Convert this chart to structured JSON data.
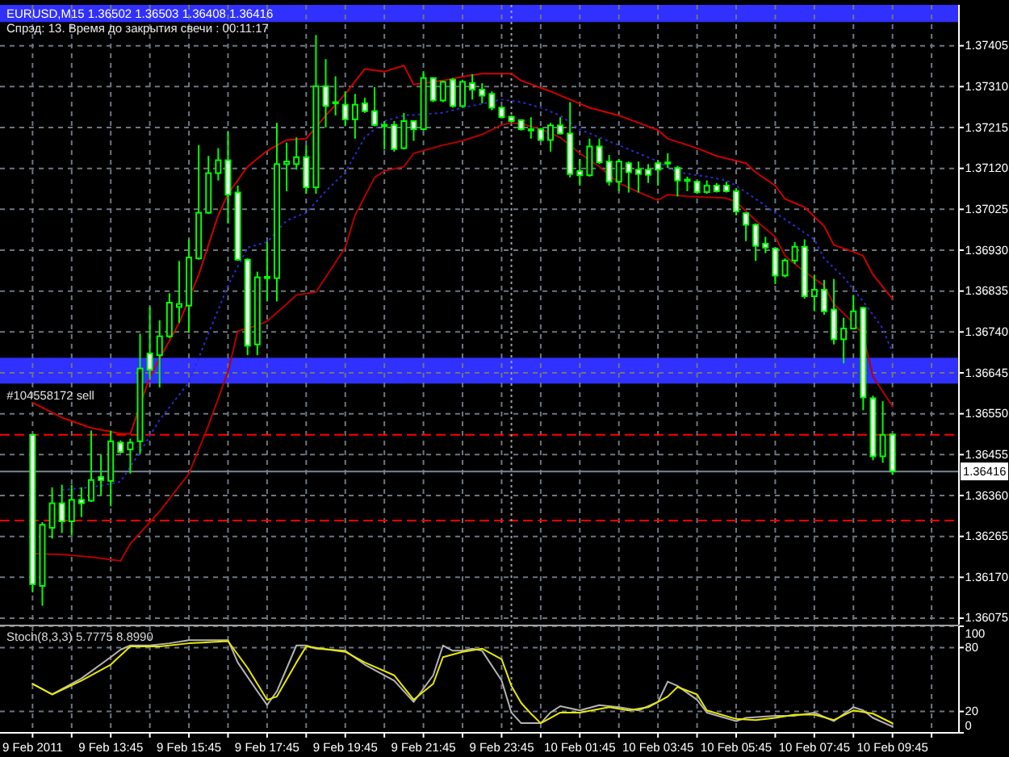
{
  "chart_data": [
    {
      "type": "candlestick",
      "title": "EURUSD,M15 1.36502 1.36503 1.36408 1.36416",
      "subtitle": "Спрэд: 13. Время до закрытия свечи : 00:11:17",
      "x": [
        "2011-02-09T11:45",
        "2011-02-09T12:00",
        "2011-02-09T12:15",
        "2011-02-09T12:30",
        "2011-02-09T12:45",
        "2011-02-09T13:00",
        "2011-02-09T13:15",
        "2011-02-09T13:30",
        "2011-02-09T13:45",
        "2011-02-09T14:00",
        "2011-02-09T14:15",
        "2011-02-09T14:30",
        "2011-02-09T14:45",
        "2011-02-09T15:00",
        "2011-02-09T15:15",
        "2011-02-09T15:30",
        "2011-02-09T15:45",
        "2011-02-09T16:00",
        "2011-02-09T16:15",
        "2011-02-09T16:30",
        "2011-02-09T16:45",
        "2011-02-09T17:00",
        "2011-02-09T17:15",
        "2011-02-09T17:30",
        "2011-02-09T17:45",
        "2011-02-09T18:00",
        "2011-02-09T18:15",
        "2011-02-09T18:30",
        "2011-02-09T18:45",
        "2011-02-09T19:00",
        "2011-02-09T19:15",
        "2011-02-09T19:30",
        "2011-02-09T19:45",
        "2011-02-09T20:00",
        "2011-02-09T20:15",
        "2011-02-09T20:30",
        "2011-02-09T20:45",
        "2011-02-09T21:00",
        "2011-02-09T21:15",
        "2011-02-09T21:30",
        "2011-02-09T21:45",
        "2011-02-09T22:00",
        "2011-02-09T22:15",
        "2011-02-09T22:30",
        "2011-02-09T22:45",
        "2011-02-09T23:00",
        "2011-02-09T23:15",
        "2011-02-09T23:30",
        "2011-02-09T23:45",
        "2011-02-10T00:00",
        "2011-02-10T00:15",
        "2011-02-10T00:30",
        "2011-02-10T00:45",
        "2011-02-10T01:00",
        "2011-02-10T01:15",
        "2011-02-10T01:30",
        "2011-02-10T01:45",
        "2011-02-10T02:00",
        "2011-02-10T02:15",
        "2011-02-10T02:30",
        "2011-02-10T02:45",
        "2011-02-10T03:00",
        "2011-02-10T03:15",
        "2011-02-10T03:30",
        "2011-02-10T03:45",
        "2011-02-10T04:00",
        "2011-02-10T04:15",
        "2011-02-10T04:30",
        "2011-02-10T04:45",
        "2011-02-10T05:00",
        "2011-02-10T05:15",
        "2011-02-10T05:30",
        "2011-02-10T05:45",
        "2011-02-10T06:00",
        "2011-02-10T06:15",
        "2011-02-10T06:30",
        "2011-02-10T06:45",
        "2011-02-10T07:00",
        "2011-02-10T07:15",
        "2011-02-10T07:30",
        "2011-02-10T07:45",
        "2011-02-10T08:00",
        "2011-02-10T08:15",
        "2011-02-10T08:30",
        "2011-02-10T08:45",
        "2011-02-10T09:00",
        "2011-02-10T09:15",
        "2011-02-10T09:30",
        "2011-02-10T09:45"
      ],
      "ohlc": [
        [
          1.36501,
          1.36504,
          1.36135,
          1.36154
        ],
        [
          1.3615,
          1.36298,
          1.36104,
          1.36292
        ],
        [
          1.36285,
          1.36379,
          1.3626,
          1.36342
        ],
        [
          1.36342,
          1.36385,
          1.36273,
          1.363
        ],
        [
          1.363,
          1.36385,
          1.36267,
          1.3635
        ],
        [
          1.3635,
          1.36379,
          1.3631,
          1.36342
        ],
        [
          1.36348,
          1.36511,
          1.36345,
          1.36396
        ],
        [
          1.36403,
          1.36454,
          1.3636,
          1.36396
        ],
        [
          1.36394,
          1.36511,
          1.36335,
          1.36486
        ],
        [
          1.36483,
          1.36488,
          1.36458,
          1.36461
        ],
        [
          1.36467,
          1.36492,
          1.36411,
          1.36483
        ],
        [
          1.36486,
          1.36736,
          1.36457,
          1.36655
        ],
        [
          1.3669,
          1.36798,
          1.36629,
          1.36652
        ],
        [
          1.36686,
          1.36767,
          1.36611,
          1.3673
        ],
        [
          1.3673,
          1.3683,
          1.36726,
          1.36808
        ],
        [
          1.36798,
          1.36905,
          1.36761,
          1.36805
        ],
        [
          1.36801,
          1.36955,
          1.36738,
          1.36913
        ],
        [
          1.36911,
          1.37174,
          1.36908,
          1.37017
        ],
        [
          1.37017,
          1.37149,
          1.37014,
          1.37109
        ],
        [
          1.37109,
          1.37167,
          1.37092,
          1.37139
        ],
        [
          1.37139,
          1.37205,
          1.36992,
          1.37059
        ],
        [
          1.37064,
          1.3708,
          1.36905,
          1.36908
        ],
        [
          1.36908,
          1.36911,
          1.36686,
          1.36708
        ],
        [
          1.36711,
          1.3688,
          1.36686,
          1.36867
        ],
        [
          1.36866,
          1.36949,
          1.36811,
          1.36868
        ],
        [
          1.36865,
          1.37226,
          1.36811,
          1.3713
        ],
        [
          1.3713,
          1.3718,
          1.37067,
          1.37136
        ],
        [
          1.3713,
          1.37192,
          1.37117,
          1.37146
        ],
        [
          1.37146,
          1.37174,
          1.37061,
          1.37076
        ],
        [
          1.37076,
          1.3743,
          1.37061,
          1.37311
        ],
        [
          1.37311,
          1.37374,
          1.37215,
          1.37265
        ],
        [
          1.37271,
          1.37334,
          1.37243,
          1.37274
        ],
        [
          1.37268,
          1.37299,
          1.37218,
          1.37234
        ],
        [
          1.37234,
          1.37293,
          1.37189,
          1.37268
        ],
        [
          1.37271,
          1.37284,
          1.37249,
          1.37253
        ],
        [
          1.37253,
          1.37309,
          1.37218,
          1.37221
        ],
        [
          1.37221,
          1.3723,
          1.37164,
          1.3722
        ],
        [
          1.37221,
          1.3723,
          1.37159,
          1.37165
        ],
        [
          1.37167,
          1.37249,
          1.37164,
          1.3723
        ],
        [
          1.3723,
          1.3723,
          1.37184,
          1.37211
        ],
        [
          1.37211,
          1.37346,
          1.37208,
          1.3733
        ],
        [
          1.3733,
          1.3733,
          1.37274,
          1.37278
        ],
        [
          1.37278,
          1.37324,
          1.37274,
          1.37321
        ],
        [
          1.37326,
          1.3733,
          1.37261,
          1.37265
        ],
        [
          1.37265,
          1.37326,
          1.37261,
          1.37321
        ],
        [
          1.37318,
          1.37339,
          1.3728,
          1.37303
        ],
        [
          1.37303,
          1.37318,
          1.37271,
          1.37289
        ],
        [
          1.37293,
          1.37299,
          1.37255,
          1.37261
        ],
        [
          1.37261,
          1.37264,
          1.37236,
          1.37239
        ],
        [
          1.3724,
          1.37243,
          1.37226,
          1.3723
        ],
        [
          1.37232,
          1.37234,
          1.37208,
          1.37211
        ],
        [
          1.37211,
          1.37239,
          1.37189,
          1.3721
        ],
        [
          1.37211,
          1.37214,
          1.37184,
          1.37186
        ],
        [
          1.37186,
          1.37226,
          1.37159,
          1.3722
        ],
        [
          1.3722,
          1.37239,
          1.37199,
          1.37201
        ],
        [
          1.37201,
          1.37274,
          1.37099,
          1.37107
        ],
        [
          1.37114,
          1.37142,
          1.3708,
          1.37104
        ],
        [
          1.37104,
          1.37189,
          1.37101,
          1.37171
        ],
        [
          1.37171,
          1.37189,
          1.3713,
          1.37134
        ],
        [
          1.37136,
          1.37151,
          1.3708,
          1.37089
        ],
        [
          1.37089,
          1.37142,
          1.37067,
          1.37136
        ],
        [
          1.37132,
          1.37136,
          1.37064,
          1.37111
        ],
        [
          1.37117,
          1.37136,
          1.37064,
          1.37107
        ],
        [
          1.37117,
          1.3713,
          1.37086,
          1.37105
        ],
        [
          1.37132,
          1.37139,
          1.3708,
          1.37117
        ],
        [
          1.37134,
          1.37155,
          1.37121,
          1.37131
        ],
        [
          1.37121,
          1.37126,
          1.37055,
          1.37092
        ],
        [
          1.37094,
          1.37101,
          1.37067,
          1.37091
        ],
        [
          1.37089,
          1.37092,
          1.37061,
          1.37065
        ],
        [
          1.37065,
          1.37092,
          1.37061,
          1.3708
        ],
        [
          1.3708,
          1.37086,
          1.37064,
          1.37067
        ],
        [
          1.3708,
          1.37089,
          1.37064,
          1.37067
        ],
        [
          1.37067,
          1.37074,
          1.37011,
          1.3702
        ],
        [
          1.37016,
          1.37017,
          1.36951,
          1.36989
        ],
        [
          1.36989,
          1.36992,
          1.36905,
          1.3694
        ],
        [
          1.36945,
          1.36961,
          1.36923,
          1.36936
        ],
        [
          1.36934,
          1.36936,
          1.36851,
          1.36871
        ],
        [
          1.36871,
          1.36911,
          1.36867,
          1.36906
        ],
        [
          1.36906,
          1.36949,
          1.36898,
          1.36938
        ],
        [
          1.36938,
          1.36955,
          1.36817,
          1.36823
        ],
        [
          1.36823,
          1.36873,
          1.36788,
          1.36838
        ],
        [
          1.36838,
          1.36861,
          1.3678,
          1.36788
        ],
        [
          1.36792,
          1.36863,
          1.36711,
          1.36723
        ],
        [
          1.36723,
          1.36773,
          1.36667,
          1.36748
        ],
        [
          1.36748,
          1.36826,
          1.36746,
          1.36788
        ],
        [
          1.36796,
          1.36798,
          1.36558,
          1.36588
        ],
        [
          1.36586,
          1.36592,
          1.36442,
          1.36451
        ],
        [
          1.36451,
          1.36579,
          1.36436,
          1.36501
        ],
        [
          1.36502,
          1.36503,
          1.36408,
          1.36416
        ]
      ],
      "color": "#00ff00",
      "colors": [
        "#ffffff",
        "#000000",
        "#000000",
        "#ffffff",
        "#000000",
        "#ffffff",
        "#000000",
        "#ffffff",
        "#000000",
        "#ffffff",
        "#000000",
        "#000000",
        "#ffffff",
        "#000000",
        "#000000",
        "#000000",
        "#000000",
        "#000000",
        "#000000",
        "#000000",
        "#ffffff",
        "#ffffff",
        "#ffffff",
        "#000000",
        "#000000",
        "#000000",
        "#000000",
        "#000000",
        "#ffffff",
        "#000000",
        "#ffffff",
        "#000000",
        "#ffffff",
        "#000000",
        "#ffffff",
        "#ffffff",
        "#ffffff",
        "#ffffff",
        "#000000",
        "#ffffff",
        "#000000",
        "#ffffff",
        "#000000",
        "#ffffff",
        "#000000",
        "#ffffff",
        "#ffffff",
        "#ffffff",
        "#ffffff",
        "#ffffff",
        "#ffffff",
        "#ffffff",
        "#ffffff",
        "#000000",
        "#ffffff",
        "#ffffff",
        "#ffffff",
        "#000000",
        "#ffffff",
        "#ffffff",
        "#000000",
        "#ffffff",
        "#ffffff",
        "#ffffff",
        "#ffffff",
        "#ffffff",
        "#ffffff",
        "#ffffff",
        "#ffffff",
        "#000000",
        "#ffffff",
        "#ffffff",
        "#ffffff",
        "#ffffff",
        "#ffffff",
        "#ffffff",
        "#ffffff",
        "#000000",
        "#000000",
        "#ffffff",
        "#000000",
        "#ffffff",
        "#ffffff",
        "#000000",
        "#000000",
        "#ffffff",
        "#ffffff",
        "#000000",
        "#ffffff"
      ],
      "series": [
        {
          "type": "line",
          "color": "#d00000",
          "x": [
            "2011-02-09T11:45",
            "2011-02-09T12:30",
            "2011-02-09T13:15",
            "2011-02-09T14:00",
            "2011-02-09T14:15",
            "2011-02-09T14:45",
            "2011-02-09T15:30",
            "2011-02-09T16:00",
            "2011-02-09T16:30",
            "2011-02-09T16:45",
            "2011-02-09T17:15",
            "2011-02-09T17:45",
            "2011-02-09T18:15",
            "2011-02-09T18:45",
            "2011-02-09T19:15",
            "2011-02-09T19:45",
            "2011-02-09T20:15",
            "2011-02-09T20:45",
            "2011-02-09T21:15",
            "2011-02-09T21:30",
            "2011-02-09T22:15",
            "2011-02-09T22:45",
            "2011-02-09T23:15",
            "2011-02-10T00:00",
            "2011-02-10T00:15",
            "2011-02-10T01:00",
            "2011-02-10T01:30",
            "2011-02-10T02:00",
            "2011-02-10T02:45",
            "2011-02-10T03:15",
            "2011-02-10T03:45",
            "2011-02-10T04:00",
            "2011-02-10T04:45",
            "2011-02-10T05:15",
            "2011-02-10T06:00",
            "2011-02-10T06:15",
            "2011-02-10T06:45",
            "2011-02-10T07:00",
            "2011-02-10T07:30",
            "2011-02-10T08:00",
            "2011-02-10T08:15",
            "2011-02-10T08:45",
            "2011-02-10T09:00",
            "2011-02-10T09:15",
            "2011-02-10T09:45"
          ],
          "values": [
            1.36576,
            1.36541,
            1.36517,
            1.36504,
            1.36503,
            1.36636,
            1.36761,
            1.36873,
            1.37011,
            1.37061,
            1.37124,
            1.37161,
            1.37186,
            1.37189,
            1.37243,
            1.37293,
            1.37351,
            1.37345,
            1.37359,
            1.37315,
            1.37324,
            1.37333,
            1.3734,
            1.3734,
            1.37324,
            1.37299,
            1.3728,
            1.37261,
            1.37243,
            1.37226,
            1.37209,
            1.37189,
            1.37167,
            1.37149,
            1.37132,
            1.37111,
            1.3708,
            1.37049,
            1.3703,
            1.36986,
            1.36942,
            1.36926,
            1.36917,
            1.36873,
            1.36817
          ]
        },
        {
          "type": "line",
          "color": "#b40000",
          "x": [
            "2011-02-09T11:45",
            "2011-02-09T12:30",
            "2011-02-09T13:15",
            "2011-02-09T14:00",
            "2011-02-09T14:15",
            "2011-02-09T15:00",
            "2011-02-09T15:45",
            "2011-02-09T16:15",
            "2011-02-09T16:45",
            "2011-02-09T17:00",
            "2011-02-09T17:30",
            "2011-02-09T17:45",
            "2011-02-09T18:15",
            "2011-02-09T18:30",
            "2011-02-09T19:00",
            "2011-02-09T19:45",
            "2011-02-09T20:00",
            "2011-02-09T20:30",
            "2011-02-09T20:45",
            "2011-02-09T21:15",
            "2011-02-09T21:30",
            "2011-02-09T22:15",
            "2011-02-09T22:45",
            "2011-02-09T23:15",
            "2011-02-09T23:45",
            "2011-02-10T00:00",
            "2011-02-10T00:15",
            "2011-02-10T00:45",
            "2011-02-10T01:15",
            "2011-02-10T01:45",
            "2011-02-10T02:15",
            "2011-02-10T02:45",
            "2011-02-10T03:15",
            "2011-02-10T03:45",
            "2011-02-10T04:00",
            "2011-02-10T04:30",
            "2011-02-10T05:30",
            "2011-02-10T05:45",
            "2011-02-10T06:00",
            "2011-02-10T06:15",
            "2011-02-10T06:45",
            "2011-02-10T07:00",
            "2011-02-10T07:30",
            "2011-02-10T08:00",
            "2011-02-10T08:15",
            "2011-02-10T08:45",
            "2011-02-10T09:00",
            "2011-02-10T09:15",
            "2011-02-10T09:45"
          ],
          "values": [
            1.36225,
            1.36223,
            1.36217,
            1.36208,
            1.36248,
            1.36323,
            1.36411,
            1.36523,
            1.36648,
            1.36742,
            1.36755,
            1.36765,
            1.36805,
            1.36826,
            1.36833,
            1.36936,
            1.37011,
            1.37099,
            1.37114,
            1.37124,
            1.37155,
            1.37174,
            1.37184,
            1.37199,
            1.37221,
            1.37226,
            1.37224,
            1.37211,
            1.37192,
            1.37155,
            1.37124,
            1.37086,
            1.37065,
            1.37046,
            1.37059,
            1.37055,
            1.37051,
            1.37042,
            1.37021,
            1.36999,
            1.36961,
            1.36917,
            1.3688,
            1.36848,
            1.36805,
            1.36761,
            1.36733,
            1.36636,
            1.36567
          ]
        },
        {
          "type": "line",
          "color": "#2a2ad0",
          "line_style": "dotted",
          "x": [
            "2011-02-09T12:30",
            "2011-02-09T13:15",
            "2011-02-09T14:00",
            "2011-02-09T14:30",
            "2011-02-09T15:00",
            "2011-02-09T15:45",
            "2011-02-09T16:15",
            "2011-02-09T16:45",
            "2011-02-09T17:15",
            "2011-02-09T17:45",
            "2011-02-09T18:15",
            "2011-02-09T18:45",
            "2011-02-09T19:15",
            "2011-02-09T19:45",
            "2011-02-09T20:15",
            "2011-02-09T20:45",
            "2011-02-09T21:15",
            "2011-02-09T21:45",
            "2011-02-09T22:15",
            "2011-02-09T22:45",
            "2011-02-09T23:15",
            "2011-02-09T23:45",
            "2011-02-10T00:15",
            "2011-02-10T00:45",
            "2011-02-10T01:15",
            "2011-02-10T01:45",
            "2011-02-10T02:15",
            "2011-02-10T02:45",
            "2011-02-10T03:45",
            "2011-02-10T04:15",
            "2011-02-10T05:00",
            "2011-02-10T05:30",
            "2011-02-10T05:45",
            "2011-02-10T06:15",
            "2011-02-10T06:45",
            "2011-02-10T07:15",
            "2011-02-10T07:45",
            "2011-02-10T08:00",
            "2011-02-10T08:30",
            "2011-02-10T09:00",
            "2011-02-10T09:30",
            "2011-02-10T09:45"
          ],
          "values": [
            1.36373,
            1.36379,
            1.36392,
            1.36461,
            1.36536,
            1.36623,
            1.36736,
            1.36848,
            1.36936,
            1.36949,
            1.36999,
            1.37017,
            1.37067,
            1.37111,
            1.37192,
            1.3723,
            1.37243,
            1.37246,
            1.37249,
            1.37261,
            1.3727,
            1.3728,
            1.37274,
            1.37261,
            1.37243,
            1.37211,
            1.37192,
            1.37174,
            1.37136,
            1.37111,
            1.37101,
            1.37092,
            1.3708,
            1.37049,
            1.37017,
            1.36986,
            1.36955,
            1.36911,
            1.36867,
            1.36811,
            1.36748,
            1.36692
          ]
        }
      ],
      "xlim": [
        "2011-02-09T10:55",
        "2011-02-10T11:27"
      ],
      "xticks": [
        "2011-02-09T11:45",
        "2011-02-09T12:45",
        "2011-02-09T13:45",
        "2011-02-09T14:45",
        "2011-02-09T15:45",
        "2011-02-09T16:45",
        "2011-02-09T17:45",
        "2011-02-09T18:45",
        "2011-02-09T19:45",
        "2011-02-09T20:45",
        "2011-02-09T21:45",
        "2011-02-09T22:45",
        "2011-02-09T23:45",
        "2011-02-10T00:45",
        "2011-02-10T01:45",
        "2011-02-10T02:45",
        "2011-02-10T03:45",
        "2011-02-10T04:45",
        "2011-02-10T05:45",
        "2011-02-10T06:45",
        "2011-02-10T07:45",
        "2011-02-10T08:45",
        "2011-02-10T09:45",
        "2011-02-10T10:45"
      ],
      "ylim": [
        1.3606,
        1.375
      ],
      "yticks": [
        1.36075,
        {
          "value": 1.3617,
          "label": "1.36170"
        },
        1.36265,
        {
          "value": 1.3636,
          "label": "1.36360"
        },
        1.36455,
        {
          "value": 1.3655,
          "label": "1.36550"
        },
        1.36645,
        {
          "value": 1.3674,
          "label": "1.36740"
        },
        1.36835,
        {
          "value": 1.3693,
          "label": "1.36930"
        },
        1.37025,
        {
          "value": 1.3712,
          "label": "1.37120"
        },
        1.37215,
        {
          "value": 1.3731,
          "label": "1.37310"
        },
        1.37405
      ],
      "grid": true,
      "tick_labels": "y",
      "bands": [
        {
          "axis": "y",
          "from": 1.3662,
          "to": 1.3668,
          "color": "#3030ff"
        },
        {
          "axis": "y",
          "from": 1.3746,
          "to": 1.375,
          "color": "#3030ff"
        }
      ],
      "ref_lines": [
        {
          "axis": "y",
          "value": 1.36501,
          "color": "#ff0000",
          "line_style": "dashed"
        },
        {
          "axis": "y",
          "value": 1.36302,
          "color": "#ff0000",
          "line_style": "dashed"
        },
        {
          "axis": "y",
          "value": 1.36416,
          "label": "1.36416",
          "color": "#778899"
        },
        {
          "axis": "x",
          "value": "2011-02-10T00:00",
          "color": "#a0a0a0",
          "line_style": "dotted"
        }
      ],
      "annotations": [
        {
          "text": "#104558172 sell",
          "x": "2011-02-09T11:45",
          "y": 1.36501
        }
      ]
    },
    {
      "type": "line",
      "title": "Stoch(8,3,3) 5.7775 8.8990",
      "series": [
        {
          "color": "#b4b4b4",
          "x": [
            "2011-02-09T11:45",
            "2011-02-09T12:15",
            "2011-02-09T13:00",
            "2011-02-09T13:45",
            "2011-02-09T14:00",
            "2011-02-09T14:15",
            "2011-02-09T14:45",
            "2011-02-09T15:15",
            "2011-02-09T15:45",
            "2011-02-09T16:45",
            "2011-02-09T17:00",
            "2011-02-09T17:30",
            "2011-02-09T17:45",
            "2011-02-09T18:00",
            "2011-02-09T18:30",
            "2011-02-09T18:45",
            "2011-02-09T19:00",
            "2011-02-09T19:45",
            "2011-02-09T20:15",
            "2011-02-09T21:00",
            "2011-02-09T21:30",
            "2011-02-09T22:00",
            "2011-02-09T22:15",
            "2011-02-09T22:30",
            "2011-02-09T22:45",
            "2011-02-09T23:00",
            "2011-02-09T23:15",
            "2011-02-09T23:45",
            "2011-02-10T00:00",
            "2011-02-10T00:15",
            "2011-02-10T00:45",
            "2011-02-10T01:00",
            "2011-02-10T01:15",
            "2011-02-10T01:45",
            "2011-02-10T02:15",
            "2011-02-10T02:45",
            "2011-02-10T03:15",
            "2011-02-10T03:45",
            "2011-02-10T04:00",
            "2011-02-10T04:15",
            "2011-02-10T04:45",
            "2011-02-10T05:00",
            "2011-02-10T05:45",
            "2011-02-10T06:00",
            "2011-02-10T06:45",
            "2011-02-10T07:15",
            "2011-02-10T07:45",
            "2011-02-10T08:15",
            "2011-02-10T08:45",
            "2011-02-10T09:00",
            "2011-02-10T09:15",
            "2011-02-10T09:45"
          ],
          "values": [
            46,
            36,
            51,
            71,
            78,
            82,
            82,
            84,
            87,
            87,
            66,
            39,
            26,
            39,
            82,
            82,
            79,
            77,
            64,
            49,
            29,
            54,
            82,
            77,
            77,
            79,
            77,
            49,
            19,
            9,
            9,
            19,
            25,
            21,
            26,
            24,
            21,
            29,
            48,
            44,
            31,
            19,
            11,
            14,
            16,
            16,
            19,
            11,
            24,
            21,
            14,
            5.7775
          ]
        },
        {
          "color": "#e8e800",
          "x": [
            "2011-02-09T11:45",
            "2011-02-09T12:15",
            "2011-02-09T13:00",
            "2011-02-09T13:45",
            "2011-02-09T14:15",
            "2011-02-09T15:00",
            "2011-02-09T15:45",
            "2011-02-09T16:45",
            "2011-02-09T17:15",
            "2011-02-09T17:45",
            "2011-02-09T18:00",
            "2011-02-09T18:30",
            "2011-02-09T18:45",
            "2011-02-09T19:45",
            "2011-02-09T20:15",
            "2011-02-09T21:00",
            "2011-02-09T21:30",
            "2011-02-09T22:00",
            "2011-02-09T22:15",
            "2011-02-09T22:45",
            "2011-02-09T23:15",
            "2011-02-09T23:45",
            "2011-02-10T00:00",
            "2011-02-10T00:15",
            "2011-02-10T00:30",
            "2011-02-10T00:45",
            "2011-02-10T01:00",
            "2011-02-10T01:15",
            "2011-02-10T01:45",
            "2011-02-10T02:30",
            "2011-02-10T03:00",
            "2011-02-10T03:30",
            "2011-02-10T04:00",
            "2011-02-10T04:15",
            "2011-02-10T04:45",
            "2011-02-10T05:00",
            "2011-02-10T05:45",
            "2011-02-10T06:15",
            "2011-02-10T06:45",
            "2011-02-10T07:15",
            "2011-02-10T07:45",
            "2011-02-10T08:15",
            "2011-02-10T08:45",
            "2011-02-10T09:15",
            "2011-02-10T09:45"
          ],
          "values": [
            46,
            36,
            49,
            64,
            81,
            81,
            84,
            86,
            61,
            31,
            34,
            66,
            81,
            76,
            66,
            54,
            31,
            46,
            71,
            76,
            79,
            69,
            44,
            28,
            18,
            9,
            14,
            19,
            19,
            24,
            21,
            24,
            34,
            43,
            36,
            21,
            13,
            12,
            14,
            17,
            17,
            12,
            21,
            18,
            8.899
          ]
        }
      ],
      "xlim": [
        "2011-02-09T10:55",
        "2011-02-10T11:27"
      ],
      "xticks": [
        {
          "value": "2011-02-09T11:45",
          "label": "9 Feb 2011"
        },
        {
          "value": "2011-02-09T12:45",
          "label": null
        },
        {
          "value": "2011-02-09T13:45",
          "label": "9 Feb 13:45"
        },
        {
          "value": "2011-02-09T14:45",
          "label": null
        },
        {
          "value": "2011-02-09T15:45",
          "label": "9 Feb 15:45"
        },
        {
          "value": "2011-02-09T16:45",
          "label": null
        },
        {
          "value": "2011-02-09T17:45",
          "label": "9 Feb 17:45"
        },
        {
          "value": "2011-02-09T18:45",
          "label": null
        },
        {
          "value": "2011-02-09T19:45",
          "label": "9 Feb 19:45"
        },
        {
          "value": "2011-02-09T20:45",
          "label": null
        },
        {
          "value": "2011-02-09T21:45",
          "label": "9 Feb 21:45"
        },
        {
          "value": "2011-02-09T22:45",
          "label": null
        },
        {
          "value": "2011-02-09T23:45",
          "label": "9 Feb 23:45"
        },
        {
          "value": "2011-02-10T00:45",
          "label": null
        },
        {
          "value": "2011-02-10T01:45",
          "label": "10 Feb 01:45"
        },
        {
          "value": "2011-02-10T02:45",
          "label": null
        },
        {
          "value": "2011-02-10T03:45",
          "label": "10 Feb 03:45"
        },
        {
          "value": "2011-02-10T04:45",
          "label": null
        },
        {
          "value": "2011-02-10T05:45",
          "label": "10 Feb 05:45"
        },
        {
          "value": "2011-02-10T06:45",
          "label": null
        },
        {
          "value": "2011-02-10T07:45",
          "label": "10 Feb 07:45"
        },
        {
          "value": "2011-02-10T08:45",
          "label": null
        },
        {
          "value": "2011-02-10T09:45",
          "label": "10 Feb 09:45"
        },
        {
          "value": "2011-02-10T10:45",
          "label": null
        }
      ],
      "ylim": [
        0,
        100
      ],
      "yticks": [
        0,
        20,
        80,
        100
      ],
      "grid": true,
      "ref_lines": [
        {
          "axis": "x",
          "value": "2011-02-10T00:00",
          "color": "#a0a0a0",
          "line_style": "dotted"
        }
      ]
    }
  ]
}
